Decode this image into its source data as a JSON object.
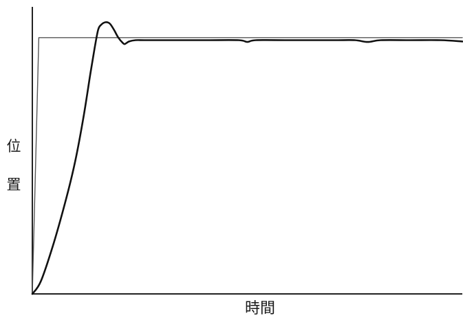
{
  "chart_data": {
    "type": "line",
    "title": "",
    "xlabel": "時間",
    "ylabel": "位置",
    "ylabel_chars": [
      "位",
      "置"
    ],
    "xlim": [
      0,
      100
    ],
    "ylim": [
      0,
      1.12
    ],
    "grid": false,
    "legend": "none",
    "series": [
      {
        "x": [
          0,
          1.5,
          100
        ],
        "y": [
          0,
          1.0,
          1.0
        ],
        "color": "#555555"
      },
      {
        "x": [
          0,
          2,
          5,
          8,
          10,
          12,
          13.5,
          14.5,
          15.3,
          16,
          17,
          18,
          19,
          20,
          21,
          21.5,
          22.5,
          24,
          26,
          30,
          40,
          48,
          50,
          52,
          60,
          70,
          75,
          78,
          81,
          88,
          95,
          100
        ],
        "y": [
          0,
          0.05,
          0.2,
          0.38,
          0.52,
          0.7,
          0.86,
          0.96,
          1.03,
          1.05,
          1.06,
          1.055,
          1.03,
          1.0,
          0.98,
          0.975,
          0.985,
          0.99,
          0.99,
          0.99,
          0.99,
          0.99,
          0.983,
          0.99,
          0.99,
          0.99,
          0.99,
          0.983,
          0.99,
          0.99,
          0.99,
          0.985
        ],
        "color": "#111111"
      }
    ]
  }
}
